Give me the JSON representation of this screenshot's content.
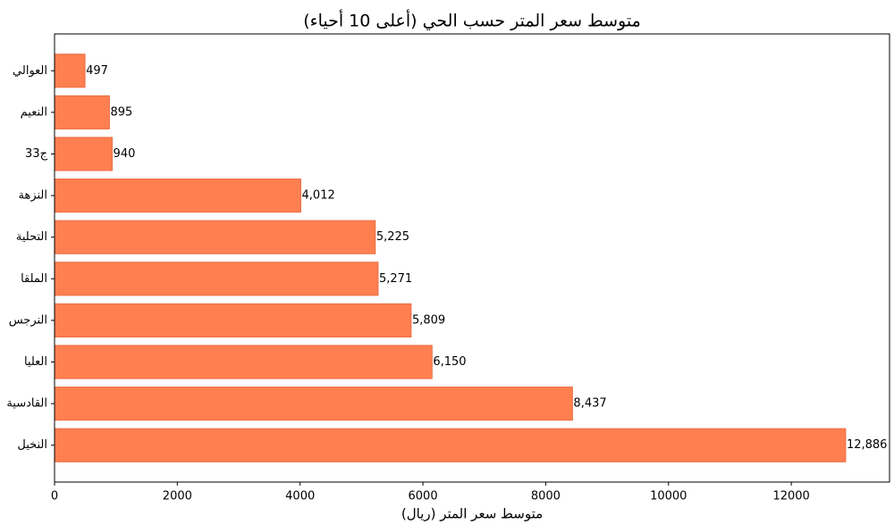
{
  "chart_data": {
    "type": "barh",
    "title": "متوسط سعر المتر حسب الحي (أعلى 10 أحياء)",
    "xlabel": "متوسط سعر المتر (ريال)",
    "categories": [
      "العوالي",
      "النعيم",
      "ج33",
      "النزهة",
      "التحلية",
      "الملقا",
      "النرجس",
      "العليا",
      "القادسية",
      "النخيل"
    ],
    "values": [
      497,
      895,
      940,
      4012,
      5225,
      5271,
      5809,
      6150,
      8437,
      12886
    ],
    "value_labels": [
      "497",
      "895",
      "940",
      "4,012",
      "5,225",
      "5,271",
      "5,809",
      "6,150",
      "8,437",
      "12,886"
    ],
    "color": "#ff7f50",
    "xlim": [
      0,
      13600
    ],
    "xticks": [
      0,
      2000,
      4000,
      6000,
      8000,
      10000,
      12000
    ]
  }
}
